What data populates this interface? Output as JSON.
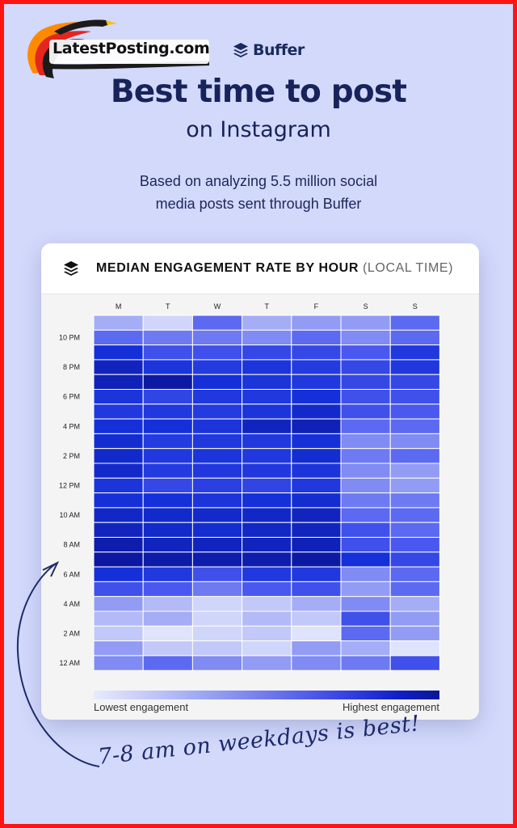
{
  "watermark": {
    "text": "LatestPosting.com"
  },
  "brand": {
    "name": "Buffer",
    "icon": "buffer-stack-icon"
  },
  "title": "Best time to post",
  "subtitle": "on Instagram",
  "description": {
    "line1": "Based on analyzing 5.5 million social",
    "line2": "media posts sent through Buffer"
  },
  "card": {
    "heading": "MEDIAN ENGAGEMENT RATE BY HOUR",
    "heading_note": "(LOCAL TIME)"
  },
  "chart_data": {
    "type": "heatmap",
    "title": "MEDIAN ENGAGEMENT RATE BY HOUR (LOCAL TIME)",
    "columns": [
      "M",
      "T",
      "W",
      "T",
      "F",
      "S",
      "S"
    ],
    "y_tick_labels": [
      "12 AM",
      "2 AM",
      "4 AM",
      "6 AM",
      "8 AM",
      "10 AM",
      "12 PM",
      "2 PM",
      "4 PM",
      "6 PM",
      "8 PM",
      "10 PM"
    ],
    "rows_from_hour0": [
      [
        0.35,
        0.45,
        0.35,
        0.3,
        0.35,
        0.4,
        0.55
      ],
      [
        0.3,
        0.15,
        0.15,
        0.1,
        0.3,
        0.25,
        0.05
      ],
      [
        0.15,
        0.05,
        0.1,
        0.15,
        0.05,
        0.45,
        0.3
      ],
      [
        0.2,
        0.25,
        0.1,
        0.2,
        0.15,
        0.55,
        0.3
      ],
      [
        0.3,
        0.2,
        0.1,
        0.15,
        0.25,
        0.35,
        0.25
      ],
      [
        0.55,
        0.5,
        0.4,
        0.5,
        0.55,
        0.3,
        0.45
      ],
      [
        0.75,
        0.7,
        0.55,
        0.7,
        0.7,
        0.35,
        0.45
      ],
      [
        0.96,
        0.93,
        0.92,
        0.92,
        0.95,
        0.75,
        0.6
      ],
      [
        0.92,
        0.85,
        0.85,
        0.85,
        0.88,
        0.55,
        0.5
      ],
      [
        0.85,
        0.8,
        0.78,
        0.82,
        0.85,
        0.55,
        0.45
      ],
      [
        0.82,
        0.8,
        0.8,
        0.82,
        0.85,
        0.45,
        0.45
      ],
      [
        0.75,
        0.75,
        0.72,
        0.75,
        0.78,
        0.4,
        0.4
      ],
      [
        0.72,
        0.6,
        0.65,
        0.62,
        0.7,
        0.35,
        0.3
      ],
      [
        0.8,
        0.68,
        0.7,
        0.7,
        0.72,
        0.35,
        0.3
      ],
      [
        0.8,
        0.7,
        0.72,
        0.7,
        0.78,
        0.4,
        0.45
      ],
      [
        0.78,
        0.68,
        0.7,
        0.7,
        0.75,
        0.35,
        0.35
      ],
      [
        0.75,
        0.75,
        0.72,
        0.85,
        0.88,
        0.45,
        0.45
      ],
      [
        0.7,
        0.7,
        0.68,
        0.72,
        0.8,
        0.55,
        0.5
      ],
      [
        0.72,
        0.62,
        0.7,
        0.7,
        0.75,
        0.55,
        0.55
      ],
      [
        0.88,
        0.95,
        0.75,
        0.72,
        0.7,
        0.6,
        0.6
      ],
      [
        0.85,
        0.72,
        0.68,
        0.72,
        0.68,
        0.6,
        0.7
      ],
      [
        0.75,
        0.55,
        0.55,
        0.6,
        0.6,
        0.5,
        0.7
      ],
      [
        0.45,
        0.4,
        0.4,
        0.35,
        0.45,
        0.35,
        0.45
      ],
      [
        0.25,
        0.1,
        0.45,
        0.25,
        0.3,
        0.3,
        0.45
      ]
    ],
    "color_scale": [
      "#eef0fd",
      "#a4adf5",
      "#4a58f0",
      "#1530d8",
      "#0a1496"
    ],
    "legend": {
      "low": "Lowest engagement",
      "high": "Highest engagement"
    }
  },
  "annotation": "7-8 am on weekdays is best!"
}
